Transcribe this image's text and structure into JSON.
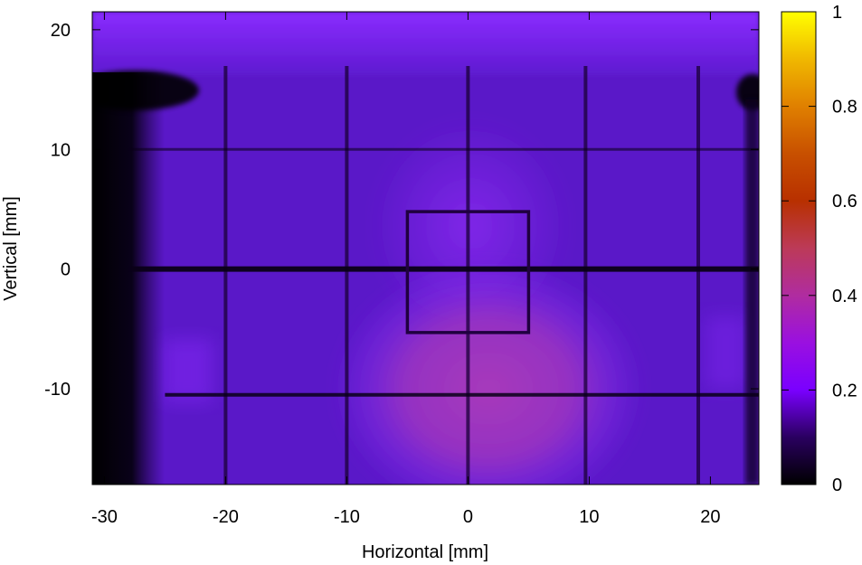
{
  "chart_data": {
    "type": "heatmap",
    "xlabel": "Horizontal [mm]",
    "ylabel": "Vertical [mm]",
    "xlim": [
      -31,
      24
    ],
    "ylim": [
      -18,
      21.5
    ],
    "x_ticks": [
      -30,
      -20,
      -10,
      0,
      10,
      20
    ],
    "x_tick_labels": [
      "-30",
      "-20",
      "-10",
      "0",
      "10",
      "20"
    ],
    "y_ticks": [
      -10,
      0,
      10,
      20
    ],
    "y_tick_labels": [
      "-10",
      "0",
      "10",
      "20"
    ],
    "colorbar": {
      "range": [
        0,
        1
      ],
      "ticks": [
        0,
        0.2,
        0.4,
        0.6,
        0.8,
        1
      ],
      "tick_labels": [
        "0",
        "0.2",
        "0.4",
        "0.6",
        "0.8",
        "1"
      ],
      "palette": [
        "#000000",
        "#3c0078",
        "#8c00ff",
        "#aa22c4",
        "#c03a7c",
        "#b83a00",
        "#d26800",
        "#e89a00",
        "#ffe800",
        "#ffff00"
      ]
    },
    "background_level": 0.22,
    "hot_spot": {
      "x": 2,
      "y": -10,
      "level": 0.4
    },
    "dark_vertical_lines_x": [
      -20,
      -10,
      0,
      9.7,
      19
    ],
    "dark_horizontal_lines_y": [
      0,
      -10.5,
      10
    ],
    "inner_square": {
      "x": [
        -5,
        5
      ],
      "y": [
        -5.3,
        4.8
      ]
    },
    "dark_left_edge_x": [
      -31,
      -27
    ]
  },
  "grid": false,
  "legend": "none"
}
